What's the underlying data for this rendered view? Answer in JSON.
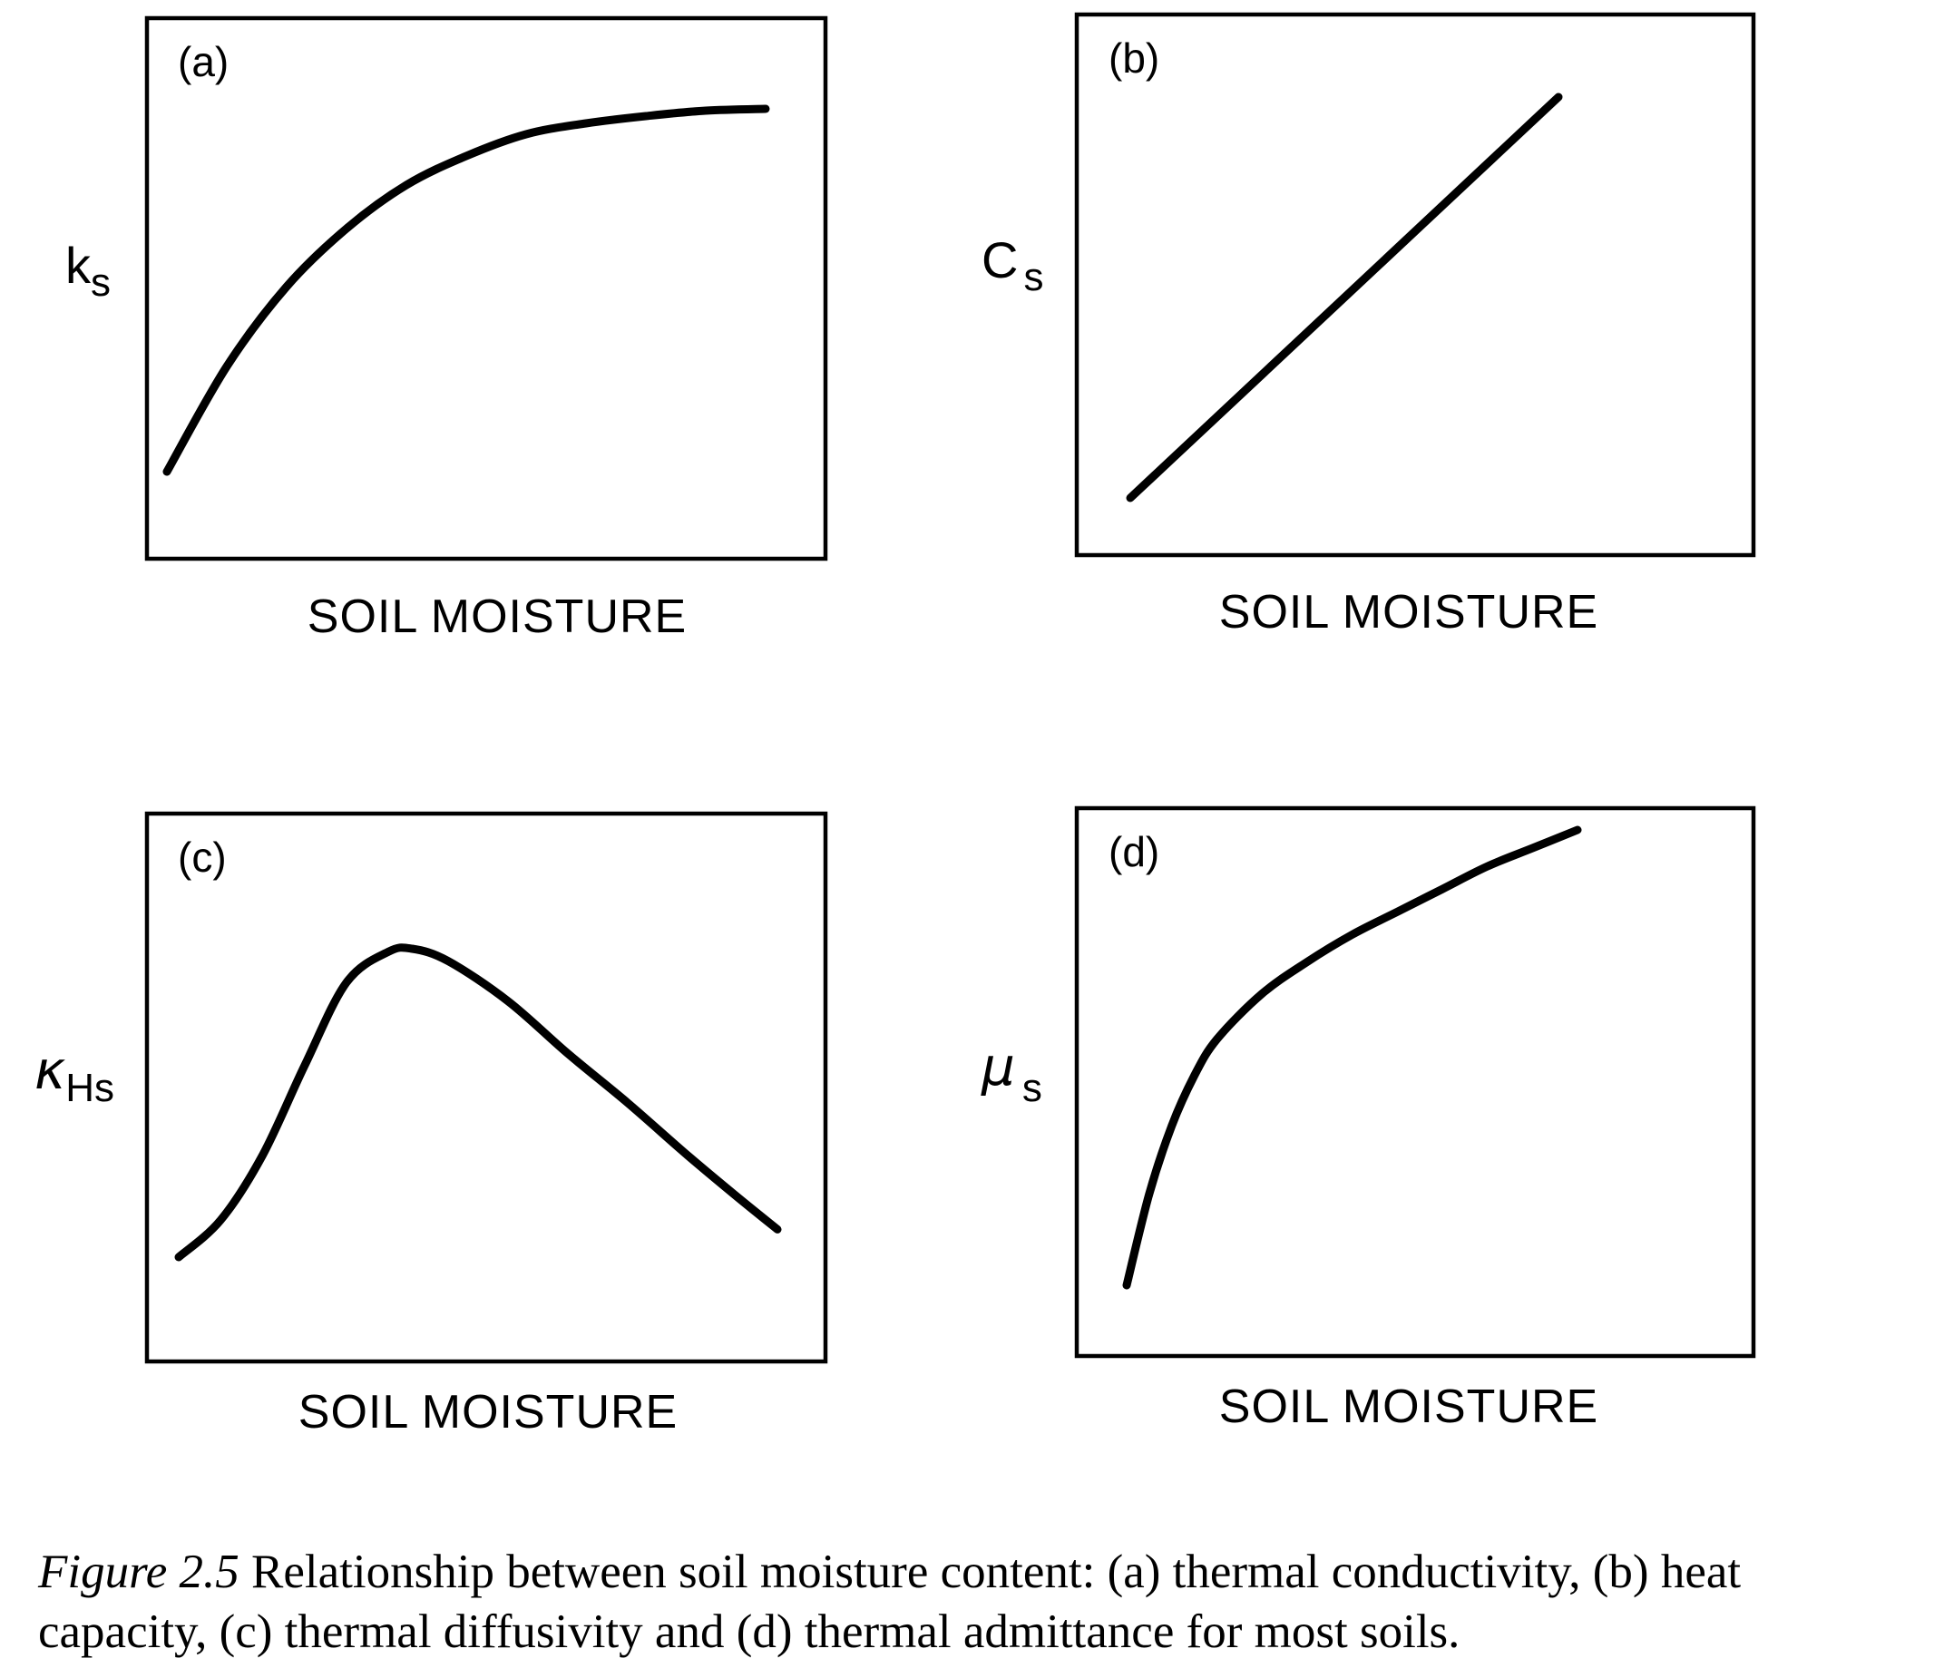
{
  "caption": {
    "figure_label": "Figure 2.5",
    "text": "Relationship between soil moisture content: (a) thermal conductivity, (b) heat capacity, (c) thermal diffusivity and (d) thermal admittance for most soils."
  },
  "chart_data": [
    {
      "panel": "(a)",
      "type": "line",
      "xlabel": "SOIL MOISTURE",
      "ylabel": "k",
      "ylabel_sub": "s",
      "shape": "concave rising curve that levels off to a plateau",
      "x": [
        0.0,
        0.1,
        0.2,
        0.3,
        0.4,
        0.5,
        0.6,
        0.7,
        0.8,
        0.9,
        1.0
      ],
      "y": [
        0.0,
        0.29,
        0.51,
        0.67,
        0.79,
        0.87,
        0.93,
        0.96,
        0.98,
        0.995,
        1.0
      ],
      "axis_ticks": false,
      "grid": false
    },
    {
      "panel": "(b)",
      "type": "line",
      "xlabel": "SOIL MOISTURE",
      "ylabel": "C",
      "ylabel_sub": "s",
      "shape": "straight line increasing",
      "x": [
        0.0,
        1.0
      ],
      "y": [
        0.0,
        1.0
      ],
      "axis_ticks": false,
      "grid": false
    },
    {
      "panel": "(c)",
      "type": "line",
      "xlabel": "SOIL MOISTURE",
      "ylabel": "κ",
      "ylabel_sub": "Hs",
      "shape": "rises steeply to a peak then declines linearly",
      "x": [
        0.0,
        0.07,
        0.14,
        0.21,
        0.28,
        0.35,
        0.39,
        0.45,
        0.55,
        0.65,
        0.75,
        0.85,
        0.93,
        1.0
      ],
      "y": [
        0.0,
        0.12,
        0.33,
        0.62,
        0.89,
        0.99,
        1.0,
        0.96,
        0.83,
        0.66,
        0.5,
        0.33,
        0.2,
        0.09
      ],
      "axis_ticks": false,
      "grid": false
    },
    {
      "panel": "(d)",
      "type": "line",
      "xlabel": "SOIL MOISTURE",
      "ylabel": "μ",
      "ylabel_sub": "s",
      "shape": "steep concave rise, flattening to a near-linear increase",
      "x": [
        0.0,
        0.05,
        0.1,
        0.15,
        0.2,
        0.3,
        0.4,
        0.5,
        0.6,
        0.7,
        0.8,
        0.9,
        1.0
      ],
      "y": [
        0.0,
        0.2,
        0.35,
        0.46,
        0.54,
        0.64,
        0.71,
        0.77,
        0.82,
        0.87,
        0.92,
        0.96,
        1.0
      ],
      "axis_ticks": false,
      "grid": false
    }
  ]
}
